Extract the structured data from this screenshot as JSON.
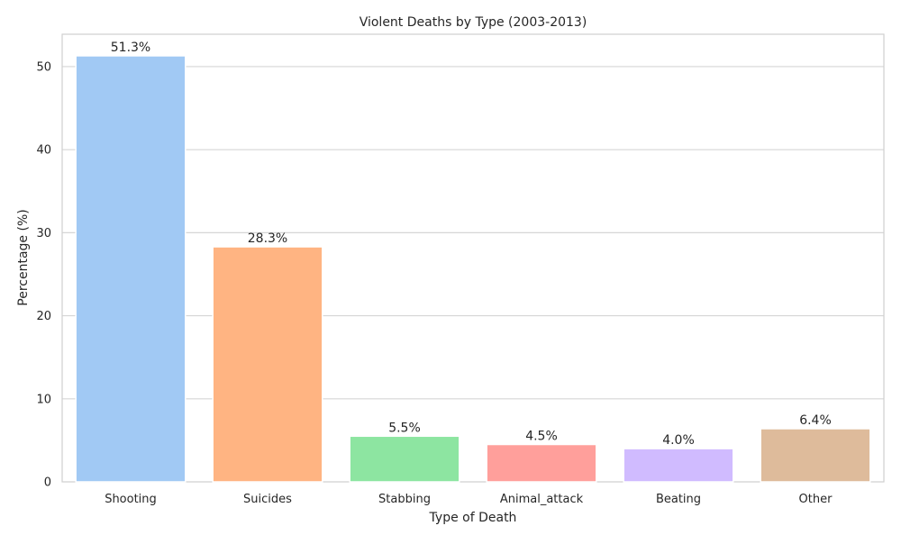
{
  "chart_data": {
    "type": "bar",
    "title": "Violent Deaths by Type (2003-2013)",
    "xlabel": "Type of Death",
    "ylabel": "Percentage (%)",
    "categories": [
      "Shooting",
      "Suicides",
      "Stabbing",
      "Animal_attack",
      "Beating",
      "Other"
    ],
    "values": [
      51.3,
      28.3,
      5.5,
      4.5,
      4.0,
      6.4
    ],
    "data_labels": [
      "51.3%",
      "28.3%",
      "5.5%",
      "4.5%",
      "4.0%",
      "6.4%"
    ],
    "colors": [
      "#a1c9f4",
      "#ffb482",
      "#8de5a1",
      "#ff9f9b",
      "#d0bbff",
      "#debb9b"
    ],
    "ylim": [
      0,
      53.9
    ],
    "yticks": [
      0,
      10,
      20,
      30,
      40,
      50
    ],
    "grid": true,
    "legend": "none"
  }
}
